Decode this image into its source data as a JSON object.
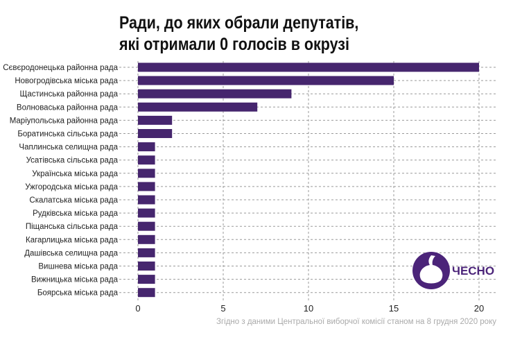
{
  "chart_data": {
    "type": "bar",
    "orientation": "horizontal",
    "title_lines": [
      "Ради, до яких обрали депутатів,",
      "які отримали 0 голосів в окрузі"
    ],
    "categories": [
      "Сєвєродонецька районна рада",
      "Новогродівська міська рада",
      "Щастинська районна рада",
      "Волноваська районна рада",
      "Маріупольська районна рада",
      "Боратинська сільська рада",
      "Чаплинська селищна рада",
      "Усатівська сільська рада",
      "Українська міська рада",
      "Ужгородська міська рада",
      "Скалатська міська рада",
      "Рудківська міська рада",
      "Піщанська сільська рада",
      "Кагарлицька міська рада",
      "Дашівська селищна рада",
      "Вишнева міська рада",
      "Вижницька міська рада",
      "Боярська міська рада"
    ],
    "values": [
      20,
      15,
      9,
      7,
      2,
      2,
      1,
      1,
      1,
      1,
      1,
      1,
      1,
      1,
      1,
      1,
      1,
      1
    ],
    "xticks": [
      0,
      5,
      10,
      15,
      20
    ],
    "xlim": [
      0,
      21
    ],
    "grid": true,
    "bar_color": "#46266e",
    "source": "Згідно з даними Центральної виборчої комісії станом на 8 грудня 2020 року"
  },
  "logo": {
    "text": "ЧЕСНО",
    "color": "#4b2479"
  }
}
